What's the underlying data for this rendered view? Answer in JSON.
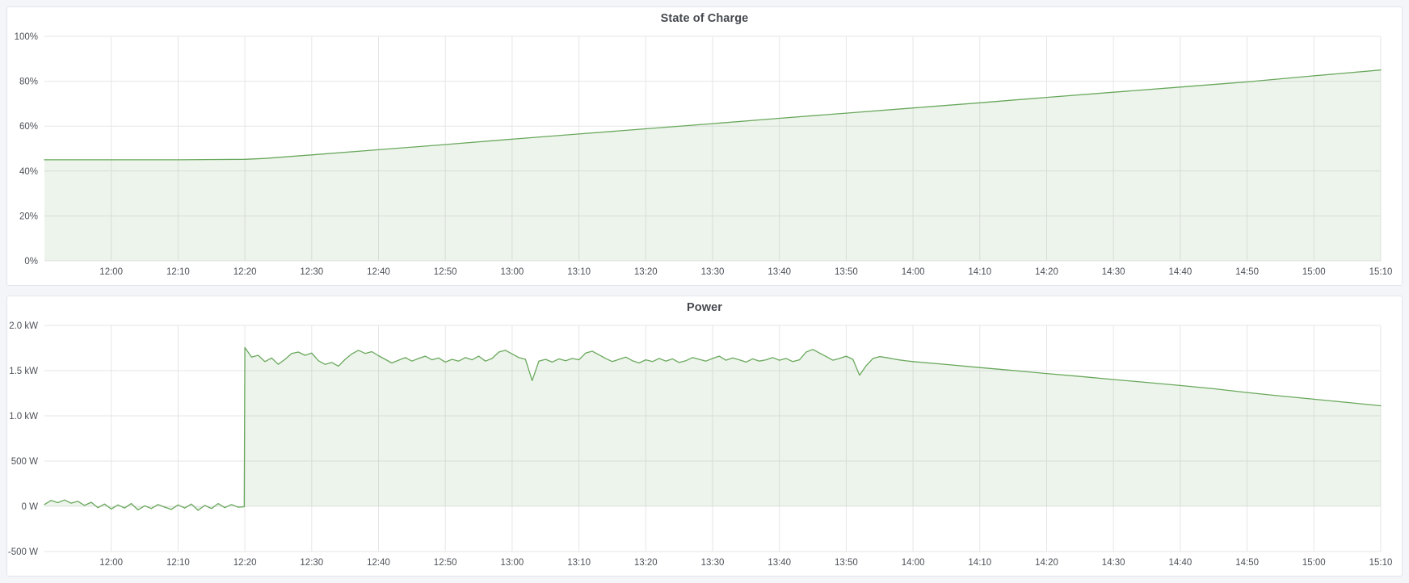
{
  "theme": {
    "line_color": "#69a85c",
    "fill_color": "rgba(105,168,92,0.12)",
    "grid_color": "#e6e6e9",
    "text_color": "#4c5158",
    "panel_background": "#ffffff",
    "panel_border": "#e0e5ec",
    "page_background": "#f4f5f8"
  },
  "panels": [
    {
      "title": "State of Charge"
    },
    {
      "title": "Power"
    }
  ],
  "chart_data": [
    {
      "type": "area",
      "title": "State of Charge",
      "ylabel": "",
      "xlabel": "",
      "x_unit": "minutes after 11:50",
      "x_range": [
        0,
        200
      ],
      "y_range": [
        0,
        100
      ],
      "fill_baseline": 0,
      "grid": true,
      "legend": false,
      "y_ticks": [
        {
          "v": 0,
          "label": "0%"
        },
        {
          "v": 20,
          "label": "20%"
        },
        {
          "v": 40,
          "label": "40%"
        },
        {
          "v": 60,
          "label": "60%"
        },
        {
          "v": 80,
          "label": "80%"
        },
        {
          "v": 100,
          "label": "100%"
        }
      ],
      "x_ticks": [
        {
          "t": 10,
          "label": "12:00"
        },
        {
          "t": 20,
          "label": "12:10"
        },
        {
          "t": 30,
          "label": "12:20"
        },
        {
          "t": 40,
          "label": "12:30"
        },
        {
          "t": 50,
          "label": "12:40"
        },
        {
          "t": 60,
          "label": "12:50"
        },
        {
          "t": 70,
          "label": "13:00"
        },
        {
          "t": 80,
          "label": "13:10"
        },
        {
          "t": 90,
          "label": "13:20"
        },
        {
          "t": 100,
          "label": "13:30"
        },
        {
          "t": 110,
          "label": "13:40"
        },
        {
          "t": 120,
          "label": "13:50"
        },
        {
          "t": 130,
          "label": "14:00"
        },
        {
          "t": 140,
          "label": "14:10"
        },
        {
          "t": 150,
          "label": "14:20"
        },
        {
          "t": 160,
          "label": "14:30"
        },
        {
          "t": 170,
          "label": "14:40"
        },
        {
          "t": 180,
          "label": "14:50"
        },
        {
          "t": 190,
          "label": "15:00"
        },
        {
          "t": 200,
          "label": "15:10"
        }
      ],
      "series": [
        {
          "name": "State of Charge (%)",
          "points": [
            [
              0,
              45
            ],
            [
              10,
              45
            ],
            [
              20,
              45
            ],
            [
              30,
              45.2
            ],
            [
              33,
              45.6
            ],
            [
              40,
              47.2
            ],
            [
              50,
              49.5
            ],
            [
              60,
              51.8
            ],
            [
              70,
              54.2
            ],
            [
              80,
              56.5
            ],
            [
              90,
              58.8
            ],
            [
              100,
              61.1
            ],
            [
              110,
              63.5
            ],
            [
              120,
              65.8
            ],
            [
              130,
              68.1
            ],
            [
              140,
              70.4
            ],
            [
              150,
              72.8
            ],
            [
              160,
              75.1
            ],
            [
              170,
              77.4
            ],
            [
              180,
              79.7
            ],
            [
              190,
              82.4
            ],
            [
              200,
              85
            ]
          ]
        }
      ]
    },
    {
      "type": "area",
      "title": "Power",
      "ylabel": "",
      "xlabel": "",
      "x_unit": "minutes after 11:50",
      "x_range": [
        0,
        200
      ],
      "y_range": [
        -500,
        2000
      ],
      "fill_baseline": 0,
      "grid": true,
      "legend": false,
      "y_ticks": [
        {
          "v": -500,
          "label": "-500 W"
        },
        {
          "v": 0,
          "label": "0 W"
        },
        {
          "v": 500,
          "label": "500 W"
        },
        {
          "v": 1000,
          "label": "1.0 kW"
        },
        {
          "v": 1500,
          "label": "1.5 kW"
        },
        {
          "v": 2000,
          "label": "2.0 kW"
        }
      ],
      "x_ticks": [
        {
          "t": 10,
          "label": "12:00"
        },
        {
          "t": 20,
          "label": "12:10"
        },
        {
          "t": 30,
          "label": "12:20"
        },
        {
          "t": 40,
          "label": "12:30"
        },
        {
          "t": 50,
          "label": "12:40"
        },
        {
          "t": 60,
          "label": "12:50"
        },
        {
          "t": 70,
          "label": "13:00"
        },
        {
          "t": 80,
          "label": "13:10"
        },
        {
          "t": 90,
          "label": "13:20"
        },
        {
          "t": 100,
          "label": "13:30"
        },
        {
          "t": 110,
          "label": "13:40"
        },
        {
          "t": 120,
          "label": "13:50"
        },
        {
          "t": 130,
          "label": "14:00"
        },
        {
          "t": 140,
          "label": "14:10"
        },
        {
          "t": 150,
          "label": "14:20"
        },
        {
          "t": 160,
          "label": "14:30"
        },
        {
          "t": 170,
          "label": "14:40"
        },
        {
          "t": 180,
          "label": "14:50"
        },
        {
          "t": 190,
          "label": "15:00"
        },
        {
          "t": 200,
          "label": "15:10"
        }
      ],
      "series": [
        {
          "name": "Power (W)",
          "points": [
            [
              0,
              20
            ],
            [
              1,
              65
            ],
            [
              2,
              40
            ],
            [
              3,
              70
            ],
            [
              4,
              35
            ],
            [
              5,
              55
            ],
            [
              6,
              10
            ],
            [
              7,
              45
            ],
            [
              8,
              -15
            ],
            [
              9,
              25
            ],
            [
              10,
              -30
            ],
            [
              11,
              15
            ],
            [
              12,
              -20
            ],
            [
              13,
              30
            ],
            [
              14,
              -40
            ],
            [
              15,
              5
            ],
            [
              16,
              -25
            ],
            [
              17,
              20
            ],
            [
              18,
              -10
            ],
            [
              19,
              -35
            ],
            [
              20,
              15
            ],
            [
              21,
              -20
            ],
            [
              22,
              25
            ],
            [
              23,
              -45
            ],
            [
              24,
              10
            ],
            [
              25,
              -25
            ],
            [
              26,
              30
            ],
            [
              27,
              -15
            ],
            [
              28,
              20
            ],
            [
              29,
              -10
            ],
            [
              29.9,
              -5
            ],
            [
              30,
              1755
            ],
            [
              31,
              1650
            ],
            [
              32,
              1670
            ],
            [
              33,
              1600
            ],
            [
              34,
              1640
            ],
            [
              35,
              1570
            ],
            [
              36,
              1625
            ],
            [
              37,
              1690
            ],
            [
              38,
              1705
            ],
            [
              39,
              1670
            ],
            [
              40,
              1695
            ],
            [
              41,
              1610
            ],
            [
              42,
              1570
            ],
            [
              43,
              1590
            ],
            [
              44,
              1550
            ],
            [
              45,
              1625
            ],
            [
              46,
              1685
            ],
            [
              47,
              1725
            ],
            [
              48,
              1690
            ],
            [
              49,
              1710
            ],
            [
              50,
              1665
            ],
            [
              51,
              1625
            ],
            [
              52,
              1585
            ],
            [
              53,
              1615
            ],
            [
              54,
              1645
            ],
            [
              55,
              1605
            ],
            [
              56,
              1635
            ],
            [
              57,
              1660
            ],
            [
              58,
              1620
            ],
            [
              59,
              1640
            ],
            [
              60,
              1595
            ],
            [
              61,
              1625
            ],
            [
              62,
              1605
            ],
            [
              63,
              1645
            ],
            [
              64,
              1620
            ],
            [
              65,
              1660
            ],
            [
              66,
              1605
            ],
            [
              67,
              1635
            ],
            [
              68,
              1705
            ],
            [
              69,
              1725
            ],
            [
              70,
              1685
            ],
            [
              71,
              1645
            ],
            [
              72,
              1625
            ],
            [
              73,
              1390
            ],
            [
              74,
              1605
            ],
            [
              75,
              1625
            ],
            [
              76,
              1595
            ],
            [
              77,
              1630
            ],
            [
              78,
              1610
            ],
            [
              79,
              1635
            ],
            [
              80,
              1620
            ],
            [
              81,
              1695
            ],
            [
              82,
              1715
            ],
            [
              83,
              1675
            ],
            [
              84,
              1635
            ],
            [
              85,
              1600
            ],
            [
              86,
              1625
            ],
            [
              87,
              1650
            ],
            [
              88,
              1610
            ],
            [
              89,
              1585
            ],
            [
              90,
              1620
            ],
            [
              91,
              1600
            ],
            [
              92,
              1635
            ],
            [
              93,
              1605
            ],
            [
              94,
              1630
            ],
            [
              95,
              1590
            ],
            [
              96,
              1610
            ],
            [
              97,
              1645
            ],
            [
              98,
              1625
            ],
            [
              99,
              1605
            ],
            [
              100,
              1635
            ],
            [
              101,
              1660
            ],
            [
              102,
              1615
            ],
            [
              103,
              1640
            ],
            [
              104,
              1620
            ],
            [
              105,
              1595
            ],
            [
              106,
              1630
            ],
            [
              107,
              1605
            ],
            [
              108,
              1620
            ],
            [
              109,
              1645
            ],
            [
              110,
              1615
            ],
            [
              111,
              1635
            ],
            [
              112,
              1600
            ],
            [
              113,
              1620
            ],
            [
              114,
              1705
            ],
            [
              115,
              1735
            ],
            [
              116,
              1695
            ],
            [
              117,
              1655
            ],
            [
              118,
              1615
            ],
            [
              119,
              1635
            ],
            [
              120,
              1660
            ],
            [
              121,
              1625
            ],
            [
              122,
              1450
            ],
            [
              123,
              1555
            ],
            [
              124,
              1635
            ],
            [
              125,
              1655
            ],
            [
              126,
              1645
            ],
            [
              127,
              1630
            ],
            [
              128,
              1618
            ],
            [
              129,
              1608
            ],
            [
              130,
              1600
            ],
            [
              135,
              1568
            ],
            [
              140,
              1534
            ],
            [
              145,
              1502
            ],
            [
              150,
              1468
            ],
            [
              155,
              1436
            ],
            [
              160,
              1402
            ],
            [
              165,
              1370
            ],
            [
              170,
              1336
            ],
            [
              175,
              1300
            ],
            [
              180,
              1258
            ],
            [
              185,
              1220
            ],
            [
              190,
              1184
            ],
            [
              195,
              1148
            ],
            [
              200,
              1112
            ]
          ]
        }
      ]
    }
  ]
}
